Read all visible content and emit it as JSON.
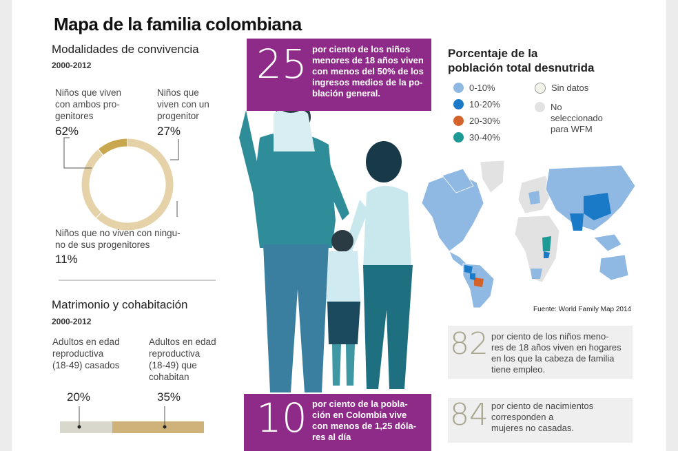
{
  "title": "Mapa de la familia colombiana",
  "convivencia": {
    "heading": "Modalidades de convivencia",
    "years": "2000-2012",
    "both_label": "Niños que viven con ambos progenitores",
    "both_lines": [
      "Niños que viven",
      "con ambos pro-",
      "genitores"
    ],
    "both_pct": "62%",
    "one_lines": [
      "Niños que",
      "viven con un",
      "progenitor"
    ],
    "one_pct": "27%",
    "none_lines": [
      "Niños que no viven con ningu-",
      "no de sus progenitores"
    ],
    "none_pct": "11%",
    "chart_values": [
      62,
      27,
      11
    ]
  },
  "matrimonio": {
    "heading": "Matrimonio y cohabitación",
    "years": "2000-2012",
    "married_lines": [
      "Adultos en edad",
      "reproductiva",
      "(18-49) casados"
    ],
    "married_pct": "20%",
    "cohab_lines": [
      "Adultos en edad",
      "reproductiva",
      "(18-49) que",
      "cohabitan"
    ],
    "cohab_pct": "35%"
  },
  "stat25": {
    "number": "25",
    "lines": [
      "por ciento de los niños",
      "menores de 18 años viven",
      "con menos del 50% de los",
      "ingresos medios de la po-",
      "blación general."
    ]
  },
  "stat10": {
    "number": "10",
    "lines": [
      "por ciento de la pobla-",
      "ción en Colombia vive",
      "con menos de 1,25 dóla-",
      "res al día"
    ]
  },
  "map": {
    "heading_lines": [
      "Porcentaje de la",
      "población total desnutrida"
    ],
    "legend": [
      {
        "label": "0-10%",
        "color": "#8fb9e3"
      },
      {
        "label": "10-20%",
        "color": "#1a7ac8"
      },
      {
        "label": "20-30%",
        "color": "#d4622b"
      },
      {
        "label": "30-40%",
        "color": "#1e9a96"
      }
    ],
    "legend_other": [
      {
        "lines": [
          "Sin datos"
        ],
        "color": "#f3f3ea"
      },
      {
        "lines": [
          "No",
          "seleccionado",
          "para WFM"
        ],
        "color": "#e2e2e2"
      }
    ],
    "source": "Fuente: World Family Map 2014"
  },
  "stat82": {
    "number": "82",
    "lines": [
      "por ciento de los niños meno-",
      "res de 18 años viven en hogares",
      "en los que la cabeza de familia",
      "tiene empleo."
    ]
  },
  "stat84": {
    "number": "84",
    "lines": [
      "por ciento de nacimientos",
      "corresponden a",
      "mujeres no casadas."
    ]
  }
}
